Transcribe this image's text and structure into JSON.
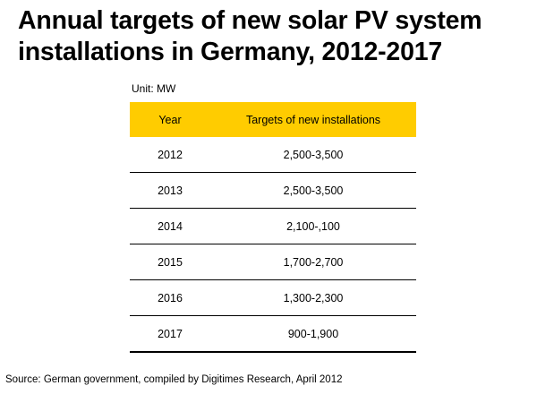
{
  "title": "Annual targets of new solar PV system installations in Germany, 2012-2017",
  "unit": "Unit: MW",
  "source": "Source: German government, compiled by Digitimes Research, April 2012",
  "colors": {
    "header_bg": "#ffcc00",
    "rule": "#000000",
    "text": "#000000"
  },
  "chart_data": {
    "type": "table",
    "title": "Annual targets of new solar PV system installations in Germany, 2012-2017",
    "unit": "Unit: MW",
    "columns": [
      "Year",
      "Targets of new installations"
    ],
    "rows": [
      [
        "2012",
        "2,500-3,500"
      ],
      [
        "2013",
        "2,500-3,500"
      ],
      [
        "2014",
        "2,100-,100"
      ],
      [
        "2015",
        "1,700-2,700"
      ],
      [
        "2016",
        "1,300-2,300"
      ],
      [
        "2017",
        "900-1,900"
      ]
    ]
  }
}
